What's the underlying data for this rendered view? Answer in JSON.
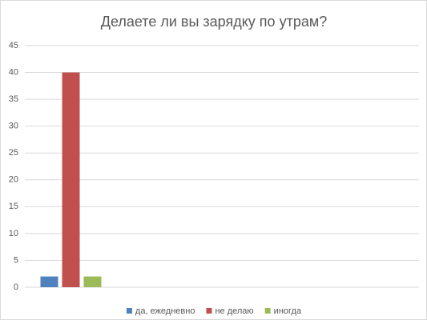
{
  "chart_data": {
    "type": "bar",
    "title": "Делаете ли вы зарядку по утрам?",
    "categories": [
      null
    ],
    "series": [
      {
        "name": "да, ежедневно",
        "color": "#4f81bd",
        "values": [
          2
        ]
      },
      {
        "name": "не делаю",
        "color": "#c0504d",
        "values": [
          40
        ]
      },
      {
        "name": "иногда",
        "color": "#9bbb59",
        "values": [
          2
        ]
      }
    ],
    "ylim": [
      0,
      45
    ],
    "yticks": [
      0,
      5,
      10,
      15,
      20,
      25,
      30,
      35,
      40,
      45
    ],
    "grid": true,
    "legend": "bottom"
  }
}
